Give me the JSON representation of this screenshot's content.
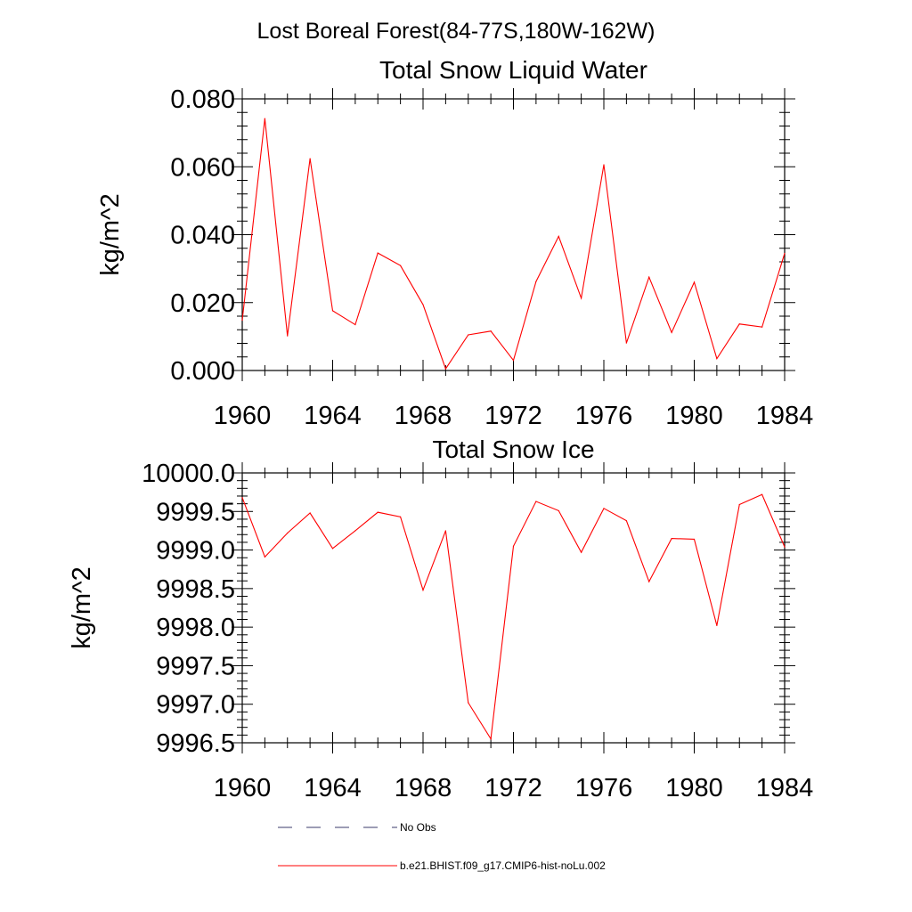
{
  "figure": {
    "title": "Lost Boreal Forest(84-77S,180W-162W)"
  },
  "legend": [
    {
      "label": "No Obs",
      "style": "dashed",
      "color": "#3b3b6b"
    },
    {
      "label": "b.e21.BHIST.f09_g17.CMIP6-hist-noLu.002",
      "style": "solid",
      "color": "#ff0000"
    }
  ],
  "chart_data": [
    {
      "type": "line",
      "title": "Total Snow Liquid Water",
      "ylabel": "kg/m^2",
      "xlim": [
        1960,
        1984
      ],
      "ylim": [
        0,
        0.08
      ],
      "xticks": [
        1960,
        1964,
        1968,
        1972,
        1976,
        1980,
        1984
      ],
      "xtick_labels": [
        "1960",
        "1964",
        "1968",
        "1972",
        "1976",
        "1980",
        "1984"
      ],
      "yticks": [
        0,
        0.02,
        0.04,
        0.06,
        0.08
      ],
      "ytick_labels": [
        "0.000",
        "0.020",
        "0.040",
        "0.060",
        "0.080"
      ],
      "x": [
        1960,
        1961,
        1962,
        1963,
        1964,
        1965,
        1966,
        1967,
        1968,
        1969,
        1970,
        1971,
        1972,
        1973,
        1974,
        1975,
        1976,
        1977,
        1978,
        1979,
        1980,
        1981,
        1982,
        1983,
        1984
      ],
      "series": [
        {
          "name": "b.e21.BHIST.f09_g17.CMIP6-hist-noLu.002",
          "color": "#ff0000",
          "values": [
            0.0148,
            0.0742,
            0.0102,
            0.0624,
            0.0176,
            0.0135,
            0.0346,
            0.0309,
            0.0194,
            0.0005,
            0.0105,
            0.0116,
            0.003,
            0.0262,
            0.0395,
            0.0213,
            0.0606,
            0.0081,
            0.0275,
            0.0112,
            0.026,
            0.0035,
            0.0137,
            0.0128,
            0.0345
          ]
        }
      ]
    },
    {
      "type": "line",
      "title": "Total Snow Ice",
      "ylabel": "kg/m^2",
      "xlim": [
        1960,
        1984
      ],
      "ylim": [
        9996.5,
        10000.0
      ],
      "xticks": [
        1960,
        1964,
        1968,
        1972,
        1976,
        1980,
        1984
      ],
      "xtick_labels": [
        "1960",
        "1964",
        "1968",
        "1972",
        "1976",
        "1980",
        "1984"
      ],
      "yticks": [
        9996.5,
        9997.0,
        9997.5,
        9998.0,
        9998.5,
        9999.0,
        9999.5,
        10000.0
      ],
      "ytick_labels": [
        "9996.5",
        "9997.0",
        "9997.5",
        "9998.0",
        "9998.5",
        "9999.0",
        "9999.5",
        "10000.0"
      ],
      "x": [
        1960,
        1961,
        1962,
        1963,
        1964,
        1965,
        1966,
        1967,
        1968,
        1969,
        1970,
        1971,
        1972,
        1973,
        1974,
        1975,
        1976,
        1977,
        1978,
        1979,
        1980,
        1981,
        1982,
        1983,
        1984
      ],
      "series": [
        {
          "name": "b.e21.BHIST.f09_g17.CMIP6-hist-noLu.002",
          "color": "#ff0000",
          "values": [
            9999.68,
            9998.91,
            9999.22,
            9999.48,
            9999.02,
            9999.25,
            9999.49,
            9999.43,
            9998.48,
            9999.25,
            9997.02,
            9996.55,
            9999.05,
            9999.63,
            9999.51,
            9998.97,
            9999.54,
            9999.38,
            9998.59,
            9999.15,
            9999.14,
            9998.02,
            9999.59,
            9999.72,
            9999.04
          ]
        }
      ]
    }
  ]
}
